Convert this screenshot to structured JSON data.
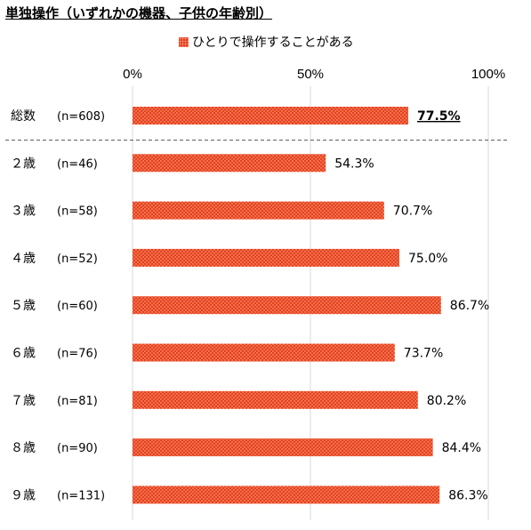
{
  "chart_data": {
    "type": "bar",
    "orientation": "horizontal",
    "title": "単独操作（いずれかの機器、子供の年齢別）",
    "legend": [
      "ひとりで操作することがある"
    ],
    "legend_position": "top",
    "series": [
      {
        "name": "ひとりで操作することがある",
        "color": "#e8411c",
        "values": [
          77.5,
          54.3,
          70.7,
          75.0,
          86.7,
          73.7,
          80.2,
          84.4,
          86.3
        ]
      }
    ],
    "categories": [
      "総数",
      "２歳",
      "３歳",
      "４歳",
      "５歳",
      "６歳",
      "７歳",
      "８歳",
      "９歳"
    ],
    "sample_sizes": [
      "(n=608)",
      "(n=46)",
      "(n=58)",
      "(n=52)",
      "(n=60)",
      "(n=76)",
      "(n=81)",
      "(n=90)",
      "(n=131)"
    ],
    "data_labels": [
      "77.5%",
      "54.3%",
      "70.7%",
      "75.0%",
      "86.7%",
      "73.7%",
      "80.2%",
      "84.4%",
      "86.3%"
    ],
    "x_ticks": [
      "0%",
      "50%",
      "100%"
    ],
    "xlim": [
      0,
      100
    ],
    "grid": true,
    "separator_after_first": true,
    "highlighted_label_index": 0
  }
}
